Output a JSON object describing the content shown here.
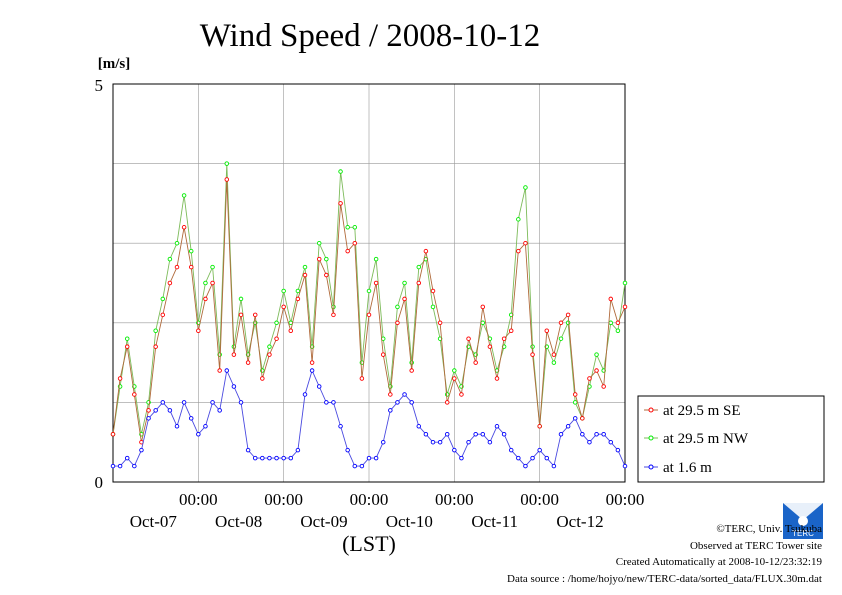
{
  "chart_data": {
    "type": "line",
    "title": "Wind Speed / 2008-10-12",
    "ylabel": "[m/s]",
    "xlabel": "(LST)",
    "ylim": [
      0,
      5
    ],
    "yticks": [
      "0",
      "5"
    ],
    "grid": true,
    "legend_position": "right",
    "xlim_hours": [
      0,
      144
    ],
    "x_ticks": [
      {
        "top": "00:00",
        "bottom": "Oct-07",
        "hour": 24
      },
      {
        "top": "00:00",
        "bottom": "Oct-08",
        "hour": 48
      },
      {
        "top": "00:00",
        "bottom": "Oct-09",
        "hour": 72
      },
      {
        "top": "00:00",
        "bottom": "Oct-10",
        "hour": 96
      },
      {
        "top": "00:00",
        "bottom": "Oct-11",
        "hour": 120
      },
      {
        "top": "00:00",
        "bottom": "Oct-12",
        "hour": 144
      }
    ],
    "x_hours": [
      0,
      2,
      4,
      6,
      8,
      10,
      12,
      14,
      16,
      18,
      20,
      22,
      24,
      26,
      28,
      30,
      32,
      34,
      36,
      38,
      40,
      42,
      44,
      46,
      48,
      50,
      52,
      54,
      56,
      58,
      60,
      62,
      64,
      66,
      68,
      70,
      72,
      74,
      76,
      78,
      80,
      82,
      84,
      86,
      88,
      90,
      92,
      94,
      96,
      98,
      100,
      102,
      104,
      106,
      108,
      110,
      112,
      114,
      116,
      118,
      120,
      122,
      124,
      126,
      128,
      130,
      132,
      134,
      136,
      138,
      140,
      142,
      144
    ],
    "series": [
      {
        "name": "at 29.5 m SE",
        "color": "#ff0000",
        "values": [
          0.6,
          1.3,
          1.7,
          1.1,
          0.5,
          0.9,
          1.7,
          2.1,
          2.5,
          2.7,
          3.2,
          2.7,
          1.9,
          2.3,
          2.5,
          1.4,
          3.8,
          1.6,
          2.1,
          1.5,
          2.1,
          1.3,
          1.6,
          1.8,
          2.2,
          1.9,
          2.3,
          2.6,
          1.5,
          2.8,
          2.6,
          2.1,
          3.5,
          2.9,
          3.0,
          1.3,
          2.1,
          2.5,
          1.6,
          1.1,
          2.0,
          2.3,
          1.4,
          2.5,
          2.9,
          2.4,
          2.0,
          1.0,
          1.3,
          1.1,
          1.8,
          1.5,
          2.2,
          1.7,
          1.3,
          1.8,
          1.9,
          2.9,
          3.0,
          1.6,
          0.7,
          1.9,
          1.6,
          2.0,
          2.1,
          1.1,
          0.8,
          1.3,
          1.4,
          1.2,
          2.3,
          2.0,
          2.2
        ]
      },
      {
        "name": "at 29.5 m NW",
        "color": "#00ee00",
        "values": [
          0.6,
          1.2,
          1.8,
          1.2,
          0.6,
          1.0,
          1.9,
          2.3,
          2.8,
          3.0,
          3.6,
          2.9,
          2.0,
          2.5,
          2.7,
          1.6,
          4.0,
          1.7,
          2.3,
          1.6,
          2.0,
          1.4,
          1.7,
          2.0,
          2.4,
          2.0,
          2.4,
          2.7,
          1.7,
          3.0,
          2.8,
          2.2,
          3.9,
          3.2,
          3.2,
          1.5,
          2.4,
          2.8,
          1.8,
          1.2,
          2.2,
          2.5,
          1.5,
          2.7,
          2.8,
          2.2,
          1.8,
          1.1,
          1.4,
          1.2,
          1.7,
          1.6,
          2.0,
          1.8,
          1.4,
          1.7,
          2.1,
          3.3,
          3.7,
          1.7,
          0.7,
          1.7,
          1.5,
          1.8,
          2.0,
          1.0,
          0.8,
          1.2,
          1.6,
          1.4,
          2.0,
          1.9,
          2.5
        ]
      },
      {
        "name": "at 1.6 m",
        "color": "#0000ff",
        "values": [
          0.2,
          0.2,
          0.3,
          0.2,
          0.4,
          0.8,
          0.9,
          1.0,
          0.9,
          0.7,
          1.0,
          0.8,
          0.6,
          0.7,
          1.0,
          0.9,
          1.4,
          1.2,
          1.0,
          0.4,
          0.3,
          0.3,
          0.3,
          0.3,
          0.3,
          0.3,
          0.4,
          1.1,
          1.4,
          1.2,
          1.0,
          1.0,
          0.7,
          0.4,
          0.2,
          0.2,
          0.3,
          0.3,
          0.5,
          0.9,
          1.0,
          1.1,
          1.0,
          0.7,
          0.6,
          0.5,
          0.5,
          0.6,
          0.4,
          0.3,
          0.5,
          0.6,
          0.6,
          0.5,
          0.7,
          0.6,
          0.4,
          0.3,
          0.2,
          0.3,
          0.4,
          0.3,
          0.2,
          0.6,
          0.7,
          0.8,
          0.6,
          0.5,
          0.6,
          0.6,
          0.5,
          0.4,
          0.2
        ]
      }
    ]
  },
  "credits": {
    "line1": "©TERC, Univ. Tsukuba",
    "line2": "Observed at TERC Tower site",
    "line3": "Created Automatically at 2008-10-12/23:32:19",
    "line4": "Data source : /home/hojyo/new/TERC-data/sorted_data/FLUX.30m.dat"
  },
  "logo": {
    "text": "TERC",
    "icon": "terc-logo-icon"
  }
}
